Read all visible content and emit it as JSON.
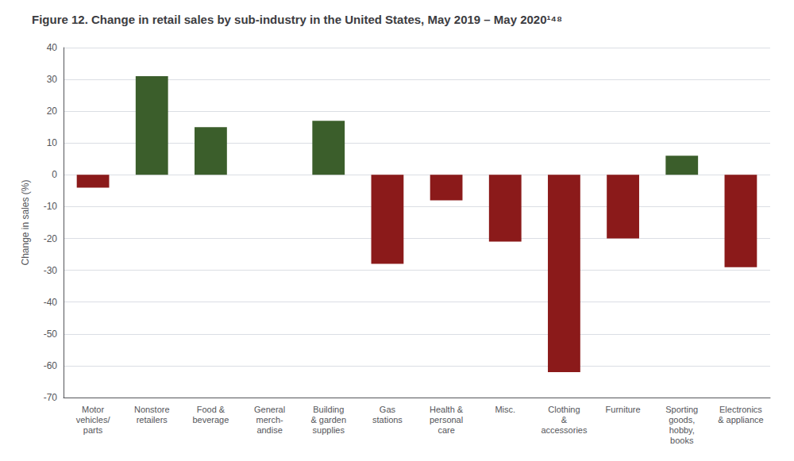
{
  "chart_data": {
    "type": "bar",
    "title": "Figure 12. Change in retail sales by sub-industry in the United States, May 2019 – May 2020¹⁴⁸",
    "categories": [
      "Motor\nvehicles/\nparts",
      "Nonstore\nretailers",
      "Food &\nbeverage",
      "General\nmerch-\nandise",
      "Building\n& garden\nsupplies",
      "Gas\nstations",
      "Health &\npersonal\ncare",
      "Misc.",
      "Clothing\n&\naccessories",
      "Furniture",
      "Sporting\ngoods,\nhobby,\nbooks",
      "Electronics\n& appliance"
    ],
    "values": [
      -4,
      31,
      15,
      0,
      17,
      -28,
      -8,
      -21,
      -62,
      -20,
      6,
      -29
    ],
    "colors": [
      "#8B1A1A",
      "#3B5E2B",
      "#3B5E2B",
      "#8B1A1A",
      "#3B5E2B",
      "#8B1A1A",
      "#8B1A1A",
      "#8B1A1A",
      "#8B1A1A",
      "#8B1A1A",
      "#3B5E2B",
      "#8B1A1A"
    ],
    "ylabel": "Change in sales (%)",
    "ylim": [
      -70,
      40
    ],
    "yticks": [
      40,
      30,
      20,
      10,
      0,
      -10,
      -20,
      -30,
      -40,
      -50,
      -60,
      -70
    ],
    "grid": true
  }
}
